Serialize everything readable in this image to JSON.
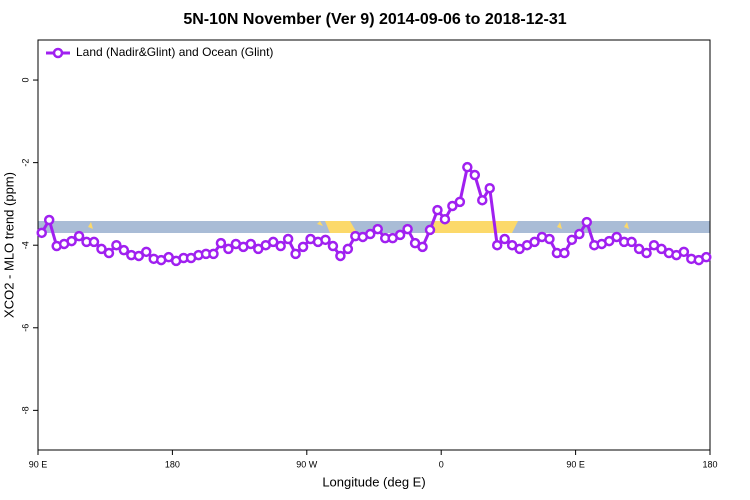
{
  "chart_data": {
    "type": "line",
    "title": "5N-10N November (Ver 9)   2014-09-06 to 2018-12-31",
    "x_label": "Longitude (deg E)",
    "y_label": "XCO2 - MLO trend (ppm)",
    "xlim": [
      90,
      540
    ],
    "xticks": [
      {
        "value": 90,
        "label": "90 E"
      },
      180,
      {
        "value": 270,
        "label": "90 W"
      },
      {
        "value": 360,
        "label": "0"
      },
      {
        "value": 450,
        "label": "90 E"
      },
      {
        "value": 540,
        "label": "180"
      }
    ],
    "ylim": [
      -8.96,
      0.97
    ],
    "yticks": [
      0,
      -2,
      -4,
      -6,
      -8
    ],
    "legend_position": "top-left",
    "series": [
      {
        "name": "Land (Nadir&Glint) and Ocean (Glint)",
        "color": "#a020f0",
        "x": [
          92.5,
          97.5,
          102.5,
          107.5,
          112.5,
          117.5,
          122.5,
          127.5,
          132.5,
          137.5,
          142.5,
          147.5,
          152.5,
          157.5,
          162.5,
          167.5,
          172.5,
          177.5,
          182.5,
          187.5,
          192.5,
          197.5,
          202.5,
          207.5,
          212.5,
          217.5,
          222.5,
          227.5,
          232.5,
          237.5,
          242.5,
          247.5,
          252.5,
          257.5,
          262.5,
          267.5,
          272.5,
          277.5,
          282.5,
          287.5,
          292.5,
          297.5,
          302.5,
          307.5,
          312.5,
          317.5,
          322.5,
          327.5,
          332.5,
          337.5,
          342.5,
          347.5,
          352.5,
          357.5,
          362.5,
          367.5,
          372.5,
          377.5,
          382.5,
          387.5,
          392.5,
          397.5,
          402.5,
          407.5,
          412.5,
          417.5,
          422.5,
          427.5,
          432.5,
          437.5,
          442.5,
          447.5,
          452.5,
          457.5,
          462.5,
          467.5,
          472.5,
          477.5,
          482.5,
          487.5,
          492.5,
          497.5,
          502.5,
          507.5,
          512.5,
          517.5,
          522.5,
          527.5,
          532.5,
          537.5
        ],
        "values": [
          -3.7,
          -3.39,
          -4.02,
          -3.97,
          -3.9,
          -3.78,
          -3.92,
          -3.92,
          -4.09,
          -4.19,
          -4.0,
          -4.12,
          -4.24,
          -4.26,
          -4.16,
          -4.33,
          -4.36,
          -4.29,
          -4.38,
          -4.31,
          -4.31,
          -4.24,
          -4.21,
          -4.21,
          -3.95,
          -4.09,
          -3.97,
          -4.04,
          -3.97,
          -4.09,
          -4.0,
          -3.92,
          -4.02,
          -3.85,
          -4.21,
          -4.04,
          -3.85,
          -3.92,
          -3.87,
          -4.02,
          -4.26,
          -4.09,
          -3.78,
          -3.8,
          -3.73,
          -3.61,
          -3.83,
          -3.83,
          -3.75,
          -3.61,
          -3.95,
          -4.04,
          -3.63,
          -3.15,
          -3.37,
          -3.05,
          -2.95,
          -2.11,
          -2.3,
          -2.91,
          -2.62,
          -4.0,
          -3.85,
          -4.0,
          -4.09,
          -4.0,
          -3.92,
          -3.8,
          -3.85,
          -4.19,
          -4.19,
          -3.87,
          -3.73,
          -3.44,
          -4.0,
          -3.97,
          -3.9,
          -3.8,
          -3.92,
          -3.92,
          -4.09,
          -4.19,
          -4.0,
          -4.09,
          -4.19,
          -4.24,
          -4.16,
          -4.33,
          -4.36,
          -4.29
        ]
      }
    ]
  }
}
